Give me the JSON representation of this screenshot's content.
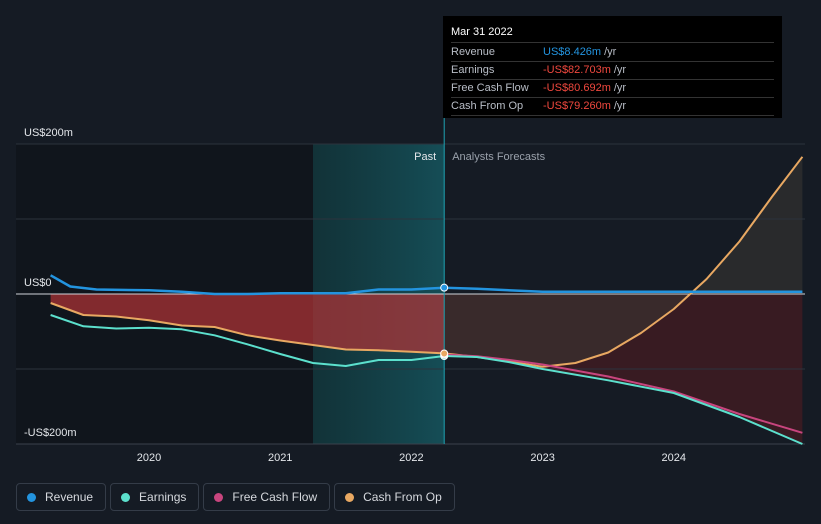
{
  "chart_data": {
    "type": "line",
    "y_axis": {
      "top_label": "US$200m",
      "zero_label": "US$0",
      "bottom_label": "-US$200m",
      "ylim": [
        -200,
        200
      ]
    },
    "x_ticks": [
      "2020",
      "2021",
      "2022",
      "2023",
      "2024"
    ],
    "xlim": [
      2019.25,
      2024.98
    ],
    "past_label": "Past",
    "forecast_label": "Analysts Forecasts",
    "past_split": 2022.25,
    "highlight_start": 2021.25,
    "series": [
      {
        "name": "Revenue",
        "color": "#2394df",
        "x": [
          2019.25,
          2019.4,
          2019.6,
          2020.0,
          2020.25,
          2020.5,
          2020.75,
          2021.0,
          2021.25,
          2021.5,
          2021.75,
          2022.0,
          2022.25,
          2022.5,
          2023.0,
          2023.5,
          2024.0,
          2024.5,
          2024.98
        ],
        "y": [
          25,
          10,
          6,
          5,
          3,
          0,
          0,
          1,
          1,
          1,
          6,
          6,
          8.426,
          7,
          3,
          3,
          3,
          3,
          3
        ]
      },
      {
        "name": "Earnings",
        "color": "#5ce0cd",
        "x": [
          2019.25,
          2019.5,
          2019.75,
          2020.0,
          2020.25,
          2020.5,
          2020.75,
          2021.0,
          2021.25,
          2021.5,
          2021.75,
          2022.0,
          2022.25,
          2022.5,
          2022.75,
          2023.0,
          2023.5,
          2024.0,
          2024.5,
          2024.98
        ],
        "y": [
          -28,
          -43,
          -46,
          -45,
          -47,
          -55,
          -67,
          -80,
          -92,
          -96,
          -88,
          -88,
          -82.703,
          -84,
          -91,
          -100,
          -115,
          -132,
          -164,
          -200
        ]
      },
      {
        "name": "Free Cash Flow",
        "color": "#c8457e",
        "x": [
          2022.25,
          2022.5,
          2022.75,
          2023.0,
          2023.5,
          2024.0,
          2024.5,
          2024.98
        ],
        "y": [
          -80.692,
          -83,
          -88,
          -94,
          -110,
          -130,
          -160,
          -185
        ]
      },
      {
        "name": "Cash From Op",
        "color": "#e8a862",
        "x": [
          2019.25,
          2019.5,
          2019.75,
          2020.0,
          2020.25,
          2020.5,
          2020.75,
          2021.0,
          2021.25,
          2021.5,
          2021.75,
          2022.0,
          2022.25,
          2022.5,
          2022.75,
          2023.0,
          2023.25,
          2023.5,
          2023.75,
          2024.0,
          2024.25,
          2024.5,
          2024.75,
          2024.98
        ],
        "y": [
          -12,
          -28,
          -30,
          -35,
          -42,
          -44,
          -55,
          -62,
          -68,
          -74,
          -75,
          -77,
          -79.26,
          -84,
          -90,
          -97,
          -92,
          -78,
          -52,
          -20,
          20,
          70,
          130,
          183
        ]
      }
    ]
  },
  "tooltip": {
    "date": "Mar 31 2022",
    "rows": [
      {
        "label": "Revenue",
        "value": "US$8.426m",
        "unit": "/yr",
        "color": "#2394df"
      },
      {
        "label": "Earnings",
        "value": "-US$82.703m",
        "unit": "/yr",
        "color": "#f0483e"
      },
      {
        "label": "Free Cash Flow",
        "value": "-US$80.692m",
        "unit": "/yr",
        "color": "#f0483e"
      },
      {
        "label": "Cash From Op",
        "value": "-US$79.260m",
        "unit": "/yr",
        "color": "#f0483e"
      }
    ]
  },
  "legend": [
    {
      "label": "Revenue",
      "color": "#2394df"
    },
    {
      "label": "Earnings",
      "color": "#5ce0cd"
    },
    {
      "label": "Free Cash Flow",
      "color": "#c8457e"
    },
    {
      "label": "Cash From Op",
      "color": "#e8a862"
    }
  ]
}
